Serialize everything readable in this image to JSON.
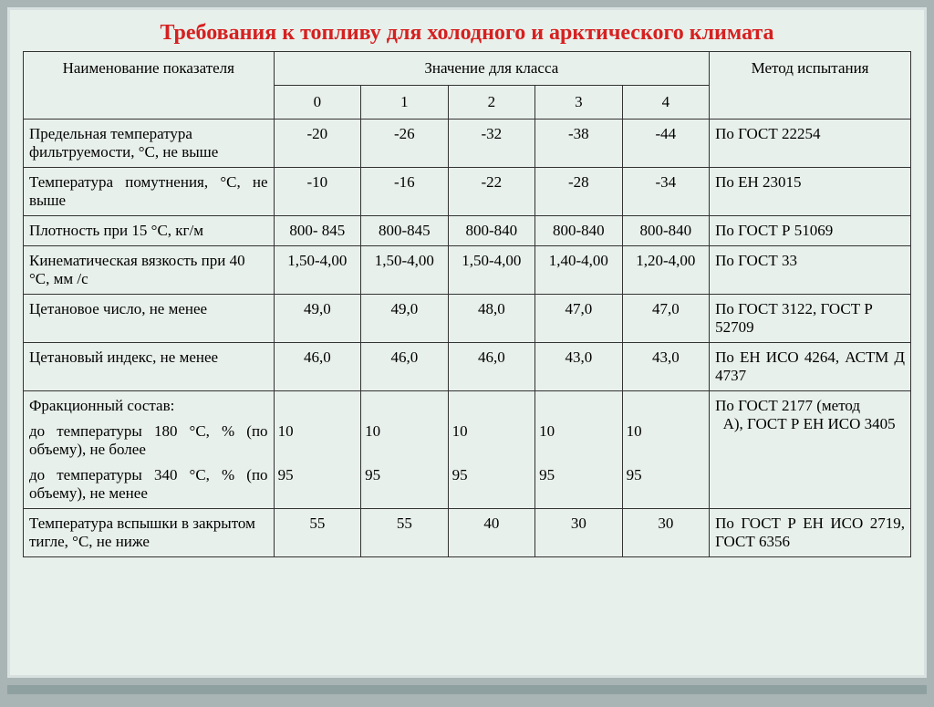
{
  "title": "Требования к топливу для холодного и арктического климата",
  "headers": {
    "param": "Наименование показателя",
    "group": "Значение для класса",
    "method": "Метод испытания",
    "classes": [
      "0",
      "1",
      "2",
      "3",
      "4"
    ]
  },
  "rows": [
    {
      "param": "Предельная температура фильтруемости, °С, не выше",
      "v": [
        "-20",
        "-26",
        "-32",
        "-38",
        "-44"
      ],
      "method": "По ГОСТ 22254"
    },
    {
      "param": "Температура помутнения, °С, не выше",
      "justify": true,
      "v": [
        "-10",
        "-16",
        "-22",
        "-28",
        "-34"
      ],
      "method": "По ЕН 23015"
    },
    {
      "param": "Плотность при 15 °С, кг/м",
      "v": [
        "800- 845",
        "800-845",
        "800-840",
        "800-840",
        "800-840"
      ],
      "method": "По ГОСТ Р 51069"
    },
    {
      "param": "Кинематическая вязкость при 40 °С, мм /с",
      "v": [
        "1,50-4,00",
        "1,50-4,00",
        "1,50-4,00",
        "1,40-4,00",
        "1,20-4,00"
      ],
      "method": "По ГОСТ 33"
    },
    {
      "param": "Цетановое число, не менее",
      "v": [
        "49,0",
        "49,0",
        "48,0",
        "47,0",
        "47,0"
      ],
      "method": "По ГОСТ 3122, ГОСТ Р 52709"
    },
    {
      "param": "Цетановый индекс, не менее",
      "v": [
        "46,0",
        "46,0",
        "46,0",
        "43,0",
        "43,0"
      ],
      "method": "По ЕН ИСО 4264, АСТМ Д 4737",
      "method_justify": true
    }
  ],
  "frac": {
    "head": "Фракционный состав:",
    "line1": {
      "label": "до температуры 180 °С, % (по объему), не более",
      "v": [
        "10",
        "10",
        "10",
        "10",
        "10"
      ]
    },
    "line2": {
      "label": "до температуры 340 °С, % (по объему), не менее",
      "v": [
        "95",
        "95",
        "95",
        "95",
        "95"
      ]
    },
    "method_a": "По ГОСТ 2177 (метод",
    "method_b": "  А), ГОСТ Р ЕН ИСО 3405"
  },
  "flash": {
    "param": "Температура вспышки в закрытом тигле, °С, не ниже",
    "v": [
      "55",
      "55",
      "40",
      "30",
      "30"
    ],
    "method": "По ГОСТ Р ЕН ИСО 2719, ГОСТ 6356"
  },
  "colors": {
    "page_bg": "#a9b4b4",
    "panel_bg": "#e8f0eb",
    "border": "#333333",
    "title": "#d62020"
  }
}
